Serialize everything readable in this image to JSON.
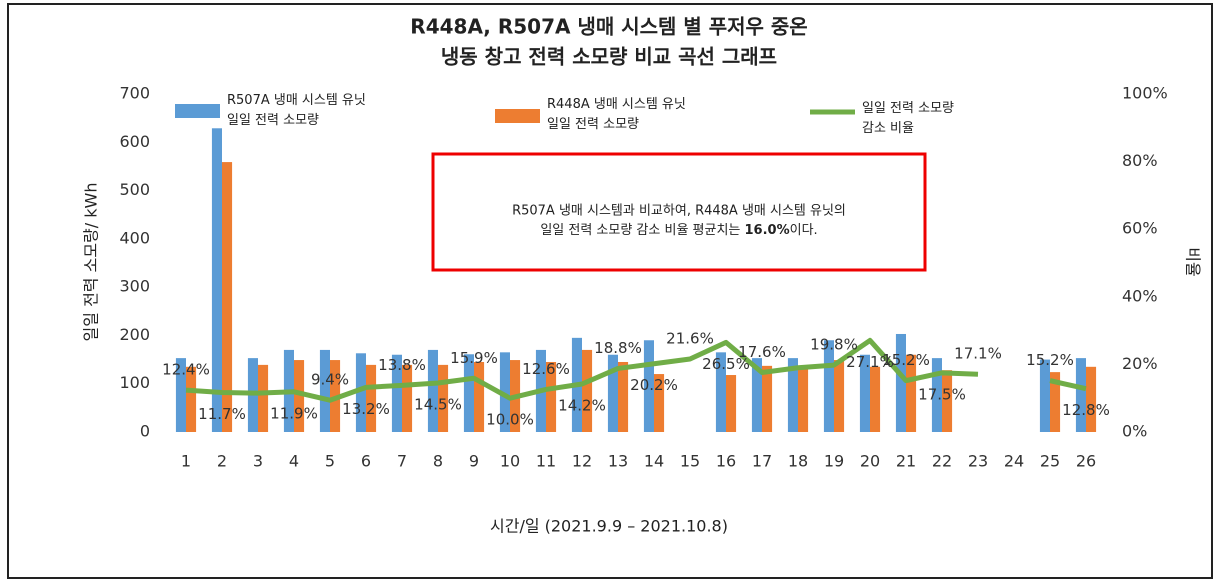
{
  "chart_data": {
    "type": "bar_line",
    "title": "R448A, R507A 냉매 시스템 별 푸저우 중온",
    "subtitle": "냉동 창고 전력 소모량 비교 곡선 그래프",
    "x_label": "시간/일 (2021.9.9 – 2021.10.8)",
    "y_label": "일일 전력 소모량/ kWh",
    "y2_label": "비율",
    "annotation": [
      "R507A 냉매 시스템과 비교하여, R448A 냉매 시스템 유닛의",
      "일일 전력 소모량 감소 비율 평균치는 ",
      "16.0%",
      "이다."
    ],
    "categories": [
      "1",
      "2",
      "3",
      "4",
      "5",
      "6",
      "7",
      "8",
      "9",
      "10",
      "11",
      "12",
      "13",
      "14",
      "15",
      "16",
      "17",
      "18",
      "19",
      "20",
      "21",
      "22",
      "23",
      "24",
      "25",
      "26"
    ],
    "ylim": [
      0,
      700
    ],
    "yticks": [
      0,
      100,
      200,
      300,
      400,
      500,
      600,
      700
    ],
    "y2lim": [
      0,
      100
    ],
    "y2ticks": [
      {
        "value": 0,
        "label": "0%"
      },
      {
        "value": 20,
        "label": "20%"
      },
      {
        "value": 40,
        "label": "40%"
      },
      {
        "value": 60,
        "label": "60%"
      },
      {
        "value": 80,
        "label": "80%"
      },
      {
        "value": 100,
        "label": "100%"
      }
    ],
    "grid": false,
    "series": [
      {
        "name": "R507A 냉매 시스템 유닛\n일일 전력 소모량",
        "kind": "bar",
        "color": "#5b9bd5",
        "values": [
          153,
          629,
          153,
          170,
          170,
          163,
          160,
          170,
          161,
          165,
          170,
          195,
          160,
          190,
          null,
          165,
          153,
          153,
          190,
          160,
          203,
          153,
          null,
          null,
          150,
          153
        ]
      },
      {
        "name": "R448A 냉매 시스템 유닛\n일일 전력 소모량",
        "kind": "bar",
        "color": "#ed7d31",
        "values": [
          135,
          559,
          139,
          149,
          149,
          139,
          139,
          139,
          145,
          149,
          145,
          170,
          145,
          120,
          null,
          118,
          137,
          137,
          149,
          135,
          160,
          128,
          null,
          null,
          124,
          135
        ]
      },
      {
        "name": "일일 전력 소모량\n감소 비율",
        "kind": "line",
        "axis": "y2",
        "color": "#70ad47",
        "values": [
          12.4,
          11.7,
          11.5,
          11.9,
          9.4,
          13.2,
          13.8,
          14.5,
          15.9,
          10.0,
          12.6,
          14.2,
          18.8,
          20.2,
          21.6,
          26.5,
          17.6,
          19,
          19.8,
          27.1,
          15.2,
          17.5,
          17.1,
          null,
          15.2,
          12.8
        ],
        "value_labels": [
          "12.4%",
          "11.7%",
          null,
          "11.9%",
          "9.4%",
          "13.2%",
          "13.8%",
          "14.5%",
          "15.9%",
          "10.0%",
          "12.6%",
          "14.2%",
          "18.8%",
          "20.2%",
          "21.6%",
          "26.5%",
          "17.6%",
          null,
          "19.8%",
          "27.1%",
          "15.2%",
          "17.5%",
          "17.1%",
          null,
          "15.2%",
          "12.8%"
        ]
      }
    ]
  }
}
